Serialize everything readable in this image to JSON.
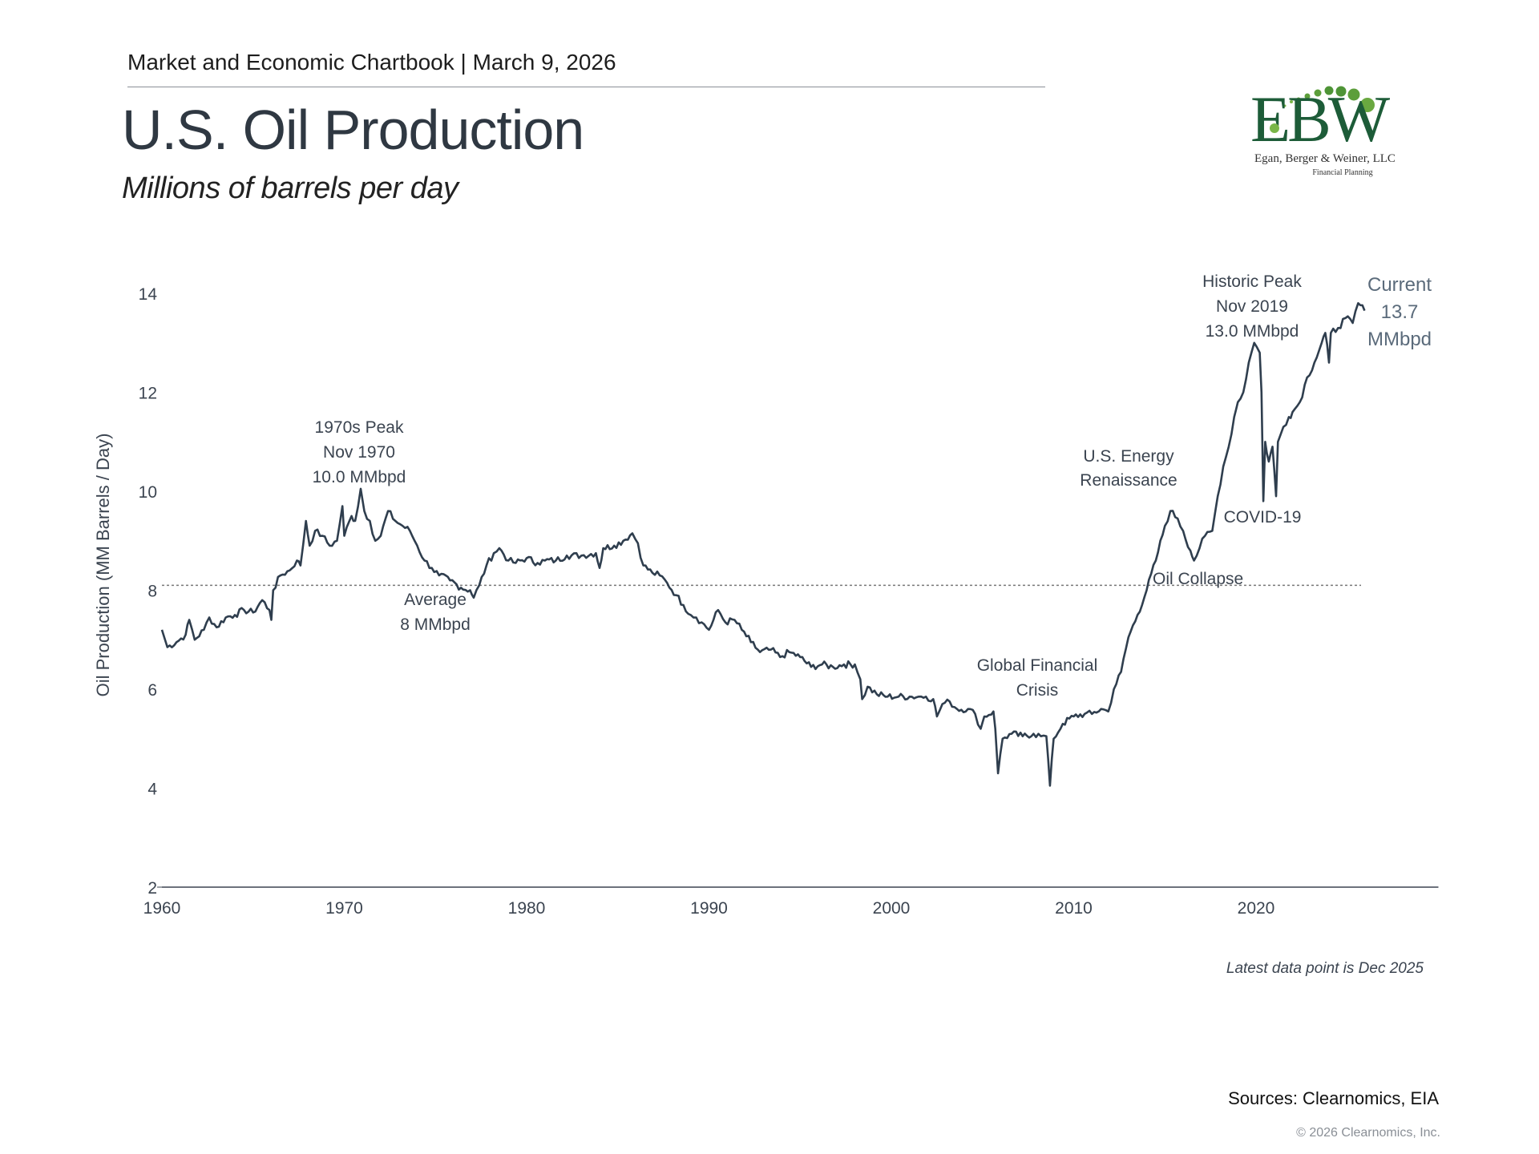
{
  "header": {
    "chartbook": "Market and Economic Chartbook | March 9, 2026"
  },
  "title": "U.S. Oil Production",
  "subtitle": "Millions of barrels per day",
  "logo": {
    "letters": "EBW",
    "name": "Egan, Berger & Weiner, LLC",
    "tagline": "Financial Planning",
    "dark_green": "#1d5c38",
    "light_green": "#7ab648"
  },
  "footer": {
    "note": "Latest data point is Dec 2025",
    "sources": "Sources: Clearnomics, EIA",
    "copyright": "© 2026 Clearnomics, Inc."
  },
  "chart_data": {
    "type": "line",
    "title": "U.S. Oil Production",
    "xlabel": "",
    "ylabel": "Oil Production (MM Barrels / Day)",
    "xlim": [
      1960,
      2030
    ],
    "ylim": [
      2,
      14
    ],
    "x_ticks": [
      "1960",
      "1970",
      "1980",
      "1990",
      "2000",
      "2010",
      "2020"
    ],
    "y_ticks": [
      "2",
      "4",
      "6",
      "8",
      "10",
      "12",
      "14"
    ],
    "grid": false,
    "line_color": "#2f3e4e",
    "average": {
      "value": 8.1,
      "label": [
        "Average",
        "8 MMbpd"
      ]
    },
    "series": [
      {
        "name": "U.S. Oil Production",
        "points": [
          [
            1960.0,
            7.2
          ],
          [
            1960.3,
            6.85
          ],
          [
            1960.8,
            6.95
          ],
          [
            1961.3,
            7.1
          ],
          [
            1961.5,
            7.4
          ],
          [
            1961.8,
            7.0
          ],
          [
            1962.3,
            7.2
          ],
          [
            1962.6,
            7.45
          ],
          [
            1963.0,
            7.25
          ],
          [
            1963.5,
            7.45
          ],
          [
            1964.0,
            7.5
          ],
          [
            1964.5,
            7.6
          ],
          [
            1965.0,
            7.55
          ],
          [
            1965.5,
            7.8
          ],
          [
            1965.9,
            7.6
          ],
          [
            1966.0,
            7.4
          ],
          [
            1966.1,
            8.0
          ],
          [
            1966.5,
            8.3
          ],
          [
            1967.0,
            8.4
          ],
          [
            1967.4,
            8.6
          ],
          [
            1967.6,
            8.5
          ],
          [
            1967.9,
            9.4
          ],
          [
            1968.1,
            8.9
          ],
          [
            1968.4,
            9.2
          ],
          [
            1968.8,
            9.1
          ],
          [
            1969.2,
            8.9
          ],
          [
            1969.6,
            9.0
          ],
          [
            1969.9,
            9.7
          ],
          [
            1970.0,
            9.1
          ],
          [
            1970.4,
            9.5
          ],
          [
            1970.6,
            9.4
          ],
          [
            1970.9,
            10.05
          ],
          [
            1971.1,
            9.6
          ],
          [
            1971.4,
            9.4
          ],
          [
            1971.7,
            9.0
          ],
          [
            1972.0,
            9.1
          ],
          [
            1972.4,
            9.6
          ],
          [
            1972.8,
            9.4
          ],
          [
            1973.2,
            9.3
          ],
          [
            1973.6,
            9.2
          ],
          [
            1974.0,
            8.9
          ],
          [
            1974.4,
            8.6
          ],
          [
            1974.8,
            8.45
          ],
          [
            1975.2,
            8.3
          ],
          [
            1975.8,
            8.2
          ],
          [
            1976.4,
            8.05
          ],
          [
            1976.9,
            8.0
          ],
          [
            1977.1,
            7.85
          ],
          [
            1977.4,
            8.1
          ],
          [
            1977.8,
            8.5
          ],
          [
            1978.2,
            8.75
          ],
          [
            1978.5,
            8.85
          ],
          [
            1979.0,
            8.6
          ],
          [
            1979.4,
            8.55
          ],
          [
            1980.0,
            8.65
          ],
          [
            1980.6,
            8.55
          ],
          [
            1981.0,
            8.6
          ],
          [
            1981.6,
            8.6
          ],
          [
            1982.2,
            8.7
          ],
          [
            1983.0,
            8.7
          ],
          [
            1983.8,
            8.75
          ],
          [
            1984.0,
            8.45
          ],
          [
            1984.2,
            8.85
          ],
          [
            1984.8,
            8.9
          ],
          [
            1985.3,
            9.0
          ],
          [
            1985.8,
            9.15
          ],
          [
            1986.1,
            8.95
          ],
          [
            1986.4,
            8.5
          ],
          [
            1986.9,
            8.35
          ],
          [
            1987.3,
            8.3
          ],
          [
            1987.7,
            8.15
          ],
          [
            1988.2,
            7.9
          ],
          [
            1988.6,
            7.7
          ],
          [
            1989.0,
            7.5
          ],
          [
            1989.3,
            7.45
          ],
          [
            1989.6,
            7.35
          ],
          [
            1990.0,
            7.2
          ],
          [
            1990.5,
            7.6
          ],
          [
            1990.9,
            7.35
          ],
          [
            1991.4,
            7.4
          ],
          [
            1991.8,
            7.2
          ],
          [
            1992.3,
            6.95
          ],
          [
            1992.8,
            6.75
          ],
          [
            1993.4,
            6.8
          ],
          [
            1993.9,
            6.65
          ],
          [
            1994.4,
            6.75
          ],
          [
            1995.0,
            6.65
          ],
          [
            1995.6,
            6.45
          ],
          [
            1996.2,
            6.5
          ],
          [
            1996.8,
            6.45
          ],
          [
            1997.4,
            6.5
          ],
          [
            1998.0,
            6.5
          ],
          [
            1998.3,
            6.2
          ],
          [
            1998.4,
            5.8
          ],
          [
            1998.7,
            6.05
          ],
          [
            1999.2,
            5.9
          ],
          [
            1999.8,
            5.85
          ],
          [
            2000.4,
            5.85
          ],
          [
            2001.0,
            5.85
          ],
          [
            2001.5,
            5.85
          ],
          [
            2001.9,
            5.85
          ],
          [
            2002.3,
            5.8
          ],
          [
            2002.5,
            5.45
          ],
          [
            2002.8,
            5.7
          ],
          [
            2003.2,
            5.75
          ],
          [
            2003.6,
            5.6
          ],
          [
            2004.2,
            5.6
          ],
          [
            2004.6,
            5.5
          ],
          [
            2004.9,
            5.2
          ],
          [
            2005.1,
            5.45
          ],
          [
            2005.6,
            5.55
          ],
          [
            2005.7,
            5.2
          ],
          [
            2005.85,
            4.3
          ],
          [
            2006.1,
            5.0
          ],
          [
            2006.6,
            5.1
          ],
          [
            2007.2,
            5.05
          ],
          [
            2007.8,
            5.1
          ],
          [
            2008.2,
            5.05
          ],
          [
            2008.5,
            5.05
          ],
          [
            2008.6,
            4.6
          ],
          [
            2008.7,
            4.05
          ],
          [
            2008.9,
            5.0
          ],
          [
            2009.4,
            5.3
          ],
          [
            2010.0,
            5.45
          ],
          [
            2010.6,
            5.5
          ],
          [
            2011.0,
            5.5
          ],
          [
            2011.5,
            5.6
          ],
          [
            2011.9,
            5.55
          ],
          [
            2012.2,
            6.0
          ],
          [
            2012.6,
            6.35
          ],
          [
            2013.0,
            7.05
          ],
          [
            2013.5,
            7.5
          ],
          [
            2014.0,
            8.0
          ],
          [
            2014.5,
            8.6
          ],
          [
            2015.0,
            9.3
          ],
          [
            2015.3,
            9.6
          ],
          [
            2015.7,
            9.45
          ],
          [
            2016.0,
            9.2
          ],
          [
            2016.4,
            8.8
          ],
          [
            2016.6,
            8.6
          ],
          [
            2016.9,
            8.85
          ],
          [
            2017.2,
            9.1
          ],
          [
            2017.6,
            9.2
          ],
          [
            2017.9,
            9.9
          ],
          [
            2018.2,
            10.5
          ],
          [
            2018.5,
            10.9
          ],
          [
            2018.8,
            11.5
          ],
          [
            2019.0,
            11.8
          ],
          [
            2019.3,
            12.0
          ],
          [
            2019.6,
            12.6
          ],
          [
            2019.9,
            13.0
          ],
          [
            2020.2,
            12.8
          ],
          [
            2020.3,
            12.0
          ],
          [
            2020.4,
            9.8
          ],
          [
            2020.5,
            11.0
          ],
          [
            2020.7,
            10.6
          ],
          [
            2020.9,
            10.9
          ],
          [
            2021.1,
            9.9
          ],
          [
            2021.2,
            11.0
          ],
          [
            2021.5,
            11.3
          ],
          [
            2021.8,
            11.5
          ],
          [
            2022.0,
            11.6
          ],
          [
            2022.4,
            11.8
          ],
          [
            2022.8,
            12.3
          ],
          [
            2023.2,
            12.6
          ],
          [
            2023.6,
            13.0
          ],
          [
            2023.8,
            13.2
          ],
          [
            2024.0,
            12.6
          ],
          [
            2024.1,
            13.2
          ],
          [
            2024.5,
            13.3
          ],
          [
            2024.9,
            13.5
          ],
          [
            2025.3,
            13.4
          ],
          [
            2025.6,
            13.8
          ],
          [
            2025.95,
            13.65
          ]
        ]
      }
    ],
    "annotations": {
      "peak_1970s": [
        "1970s Peak",
        "Nov 1970",
        "10.0 MMbpd"
      ],
      "gfc": [
        "Global Financial",
        "Crisis"
      ],
      "renaissance": [
        "U.S. Energy",
        "Renaissance"
      ],
      "oil_collapse": [
        "Oil Collapse"
      ],
      "covid": [
        "COVID-19"
      ],
      "historic_peak": [
        "Historic Peak",
        "Nov 2019",
        "13.0 MMbpd"
      ],
      "current": [
        "Current",
        "13.7",
        "MMbpd"
      ]
    }
  }
}
